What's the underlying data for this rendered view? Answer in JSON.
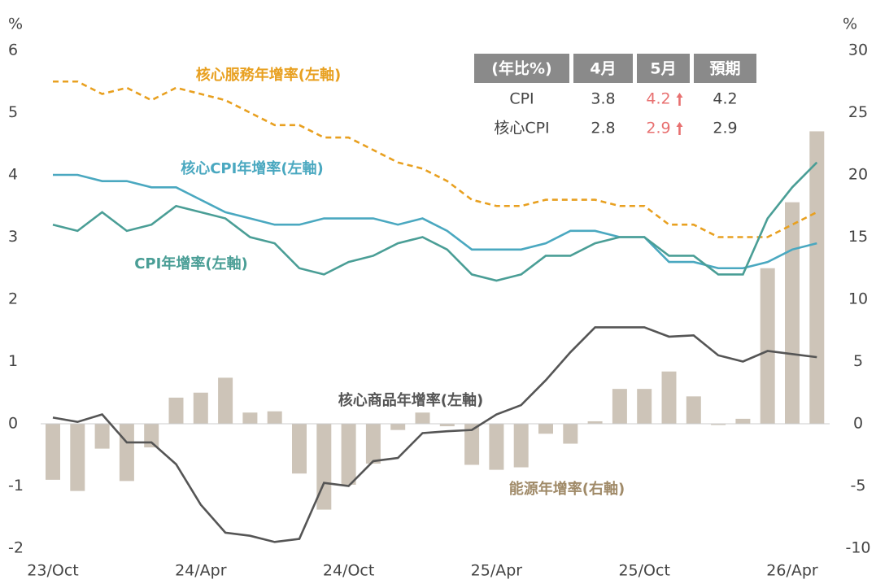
{
  "chart_data": {
    "type": "combo",
    "y_label": "%",
    "y2_label": "%",
    "categories": [
      "23/Oct",
      null,
      null,
      null,
      null,
      null,
      "24/Apr",
      null,
      null,
      null,
      null,
      null,
      "24/Oct",
      null,
      null,
      null,
      null,
      null,
      "25/Apr",
      null,
      null,
      null,
      null,
      null,
      "25/Oct",
      null,
      null,
      null,
      null,
      null,
      "26/Apr",
      null
    ],
    "ylim": [
      -2,
      6
    ],
    "yticks": [
      -2,
      -1,
      0,
      1,
      2,
      3,
      4,
      5,
      6
    ],
    "y2lim": [
      -10,
      30
    ],
    "y2ticks": [
      -10,
      -5,
      0,
      5,
      10,
      15,
      20,
      25,
      30
    ],
    "series": [
      {
        "name": "能源年增率(右軸)",
        "type": "bar",
        "axis": "y2",
        "color": "#cdc4b8",
        "label_color": "#a08a68",
        "values": [
          -4.5,
          -5.4,
          -2.0,
          -4.6,
          -1.9,
          2.1,
          2.5,
          3.7,
          0.9,
          1.0,
          -4.0,
          -6.9,
          -4.9,
          -3.2,
          -0.5,
          0.9,
          -0.2,
          -3.3,
          -3.7,
          -3.5,
          -0.8,
          -1.6,
          0.2,
          2.8,
          2.8,
          4.2,
          2.2,
          -0.1,
          0.4,
          12.5,
          17.8,
          23.5
        ]
      },
      {
        "name": "核心服務年增率(左軸)",
        "type": "line",
        "dashed": true,
        "color": "#e8a020",
        "values": [
          5.5,
          5.5,
          5.3,
          5.4,
          5.2,
          5.4,
          5.3,
          5.2,
          5.0,
          4.8,
          4.8,
          4.6,
          4.6,
          4.4,
          4.2,
          4.1,
          3.9,
          3.6,
          3.5,
          3.5,
          3.6,
          3.6,
          3.6,
          3.5,
          3.5,
          3.2,
          3.2,
          3.0,
          3.0,
          3.0,
          3.2,
          3.4
        ]
      },
      {
        "name": "核心CPI年增率(左軸)",
        "type": "line",
        "color": "#4aa8c0",
        "values": [
          4.0,
          4.0,
          3.9,
          3.9,
          3.8,
          3.8,
          3.6,
          3.4,
          3.3,
          3.2,
          3.2,
          3.3,
          3.3,
          3.3,
          3.2,
          3.3,
          3.1,
          2.8,
          2.8,
          2.8,
          2.9,
          3.1,
          3.1,
          3.0,
          3.0,
          2.6,
          2.6,
          2.5,
          2.5,
          2.6,
          2.8,
          2.9
        ]
      },
      {
        "name": "CPI年增率(左軸)",
        "type": "line",
        "color": "#4a9e96",
        "values": [
          3.2,
          3.1,
          3.4,
          3.1,
          3.2,
          3.5,
          3.4,
          3.3,
          3.0,
          2.9,
          2.5,
          2.4,
          2.6,
          2.7,
          2.9,
          3.0,
          2.8,
          2.4,
          2.3,
          2.4,
          2.7,
          2.7,
          2.9,
          3.0,
          3.0,
          2.7,
          2.7,
          2.4,
          2.4,
          3.3,
          3.8,
          4.2
        ]
      },
      {
        "name": "核心商品年增率(左軸)",
        "type": "line",
        "color": "#555555",
        "values": [
          0.1,
          0.03,
          0.15,
          -0.3,
          -0.3,
          -0.65,
          -1.3,
          -1.75,
          -1.8,
          -1.9,
          -1.85,
          -0.95,
          -1.0,
          -0.6,
          -0.55,
          -0.15,
          -0.12,
          -0.1,
          0.15,
          0.3,
          0.7,
          1.15,
          1.55,
          1.55,
          1.55,
          1.4,
          1.42,
          1.1,
          1.0,
          1.17,
          1.12,
          1.07
        ]
      }
    ],
    "table": {
      "header": [
        "(年比%)",
        "4月",
        "5月",
        "預期"
      ],
      "rows": [
        [
          "CPI",
          "3.8",
          "4.2",
          "4.2"
        ],
        [
          "核心CPI",
          "2.8",
          "2.9",
          "2.9"
        ]
      ],
      "highlight_column": 2,
      "highlight_color": "#e87070"
    }
  }
}
